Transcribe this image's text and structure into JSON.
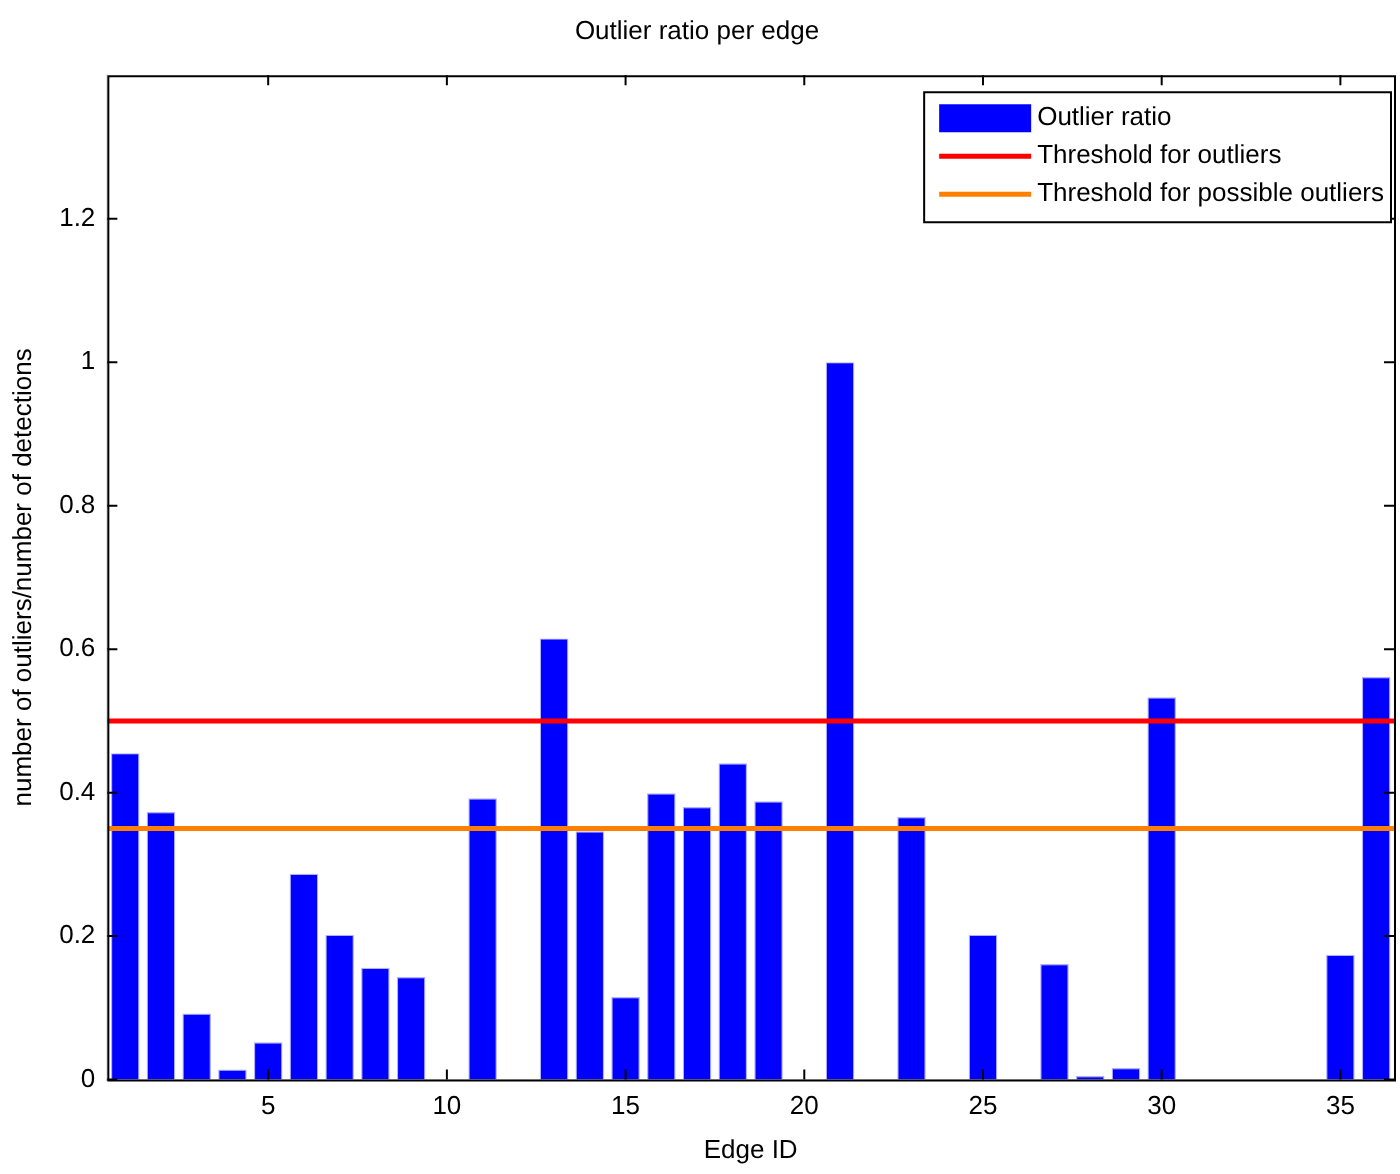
{
  "chart_data": {
    "type": "bar",
    "title": "Outlier ratio per edge",
    "xlabel": "Edge ID",
    "ylabel": "number of outliers/number of detections",
    "x": [
      1,
      2,
      3,
      4,
      5,
      6,
      7,
      8,
      9,
      10,
      11,
      12,
      13,
      14,
      15,
      16,
      17,
      18,
      19,
      20,
      21,
      22,
      23,
      24,
      25,
      26,
      27,
      28,
      29,
      30,
      31,
      32,
      33,
      34,
      35,
      36
    ],
    "series": [
      {
        "name": "Outlier ratio",
        "color": "#0000ff",
        "values": [
          0.455,
          0.373,
          0.092,
          0.014,
          0.052,
          0.287,
          0.202,
          0.156,
          0.143,
          0,
          0.392,
          0,
          0.615,
          0.346,
          0.115,
          0.399,
          0.38,
          0.441,
          0.388,
          0,
          1.0,
          0,
          0.366,
          0,
          0.202,
          0,
          0.161,
          0.005,
          0.016,
          0.533,
          0,
          0,
          0,
          0,
          0.174,
          0.561
        ]
      }
    ],
    "xlim": [
      0.5,
      36.5
    ],
    "xticks": [
      5,
      10,
      15,
      20,
      25,
      30,
      35
    ],
    "ylim": [
      0,
      1.4
    ],
    "yticks": [
      0,
      0.2,
      0.4,
      0.6,
      0.8,
      1,
      1.2
    ],
    "ref_lines": [
      {
        "axis": "y",
        "value": 0.5,
        "label": "Threshold for outliers",
        "color": "#ff0000"
      },
      {
        "axis": "y",
        "value": 0.35,
        "label": "Threshold for possible outliers",
        "color": "#ff8000"
      }
    ],
    "grid": false,
    "legend": "top right"
  }
}
